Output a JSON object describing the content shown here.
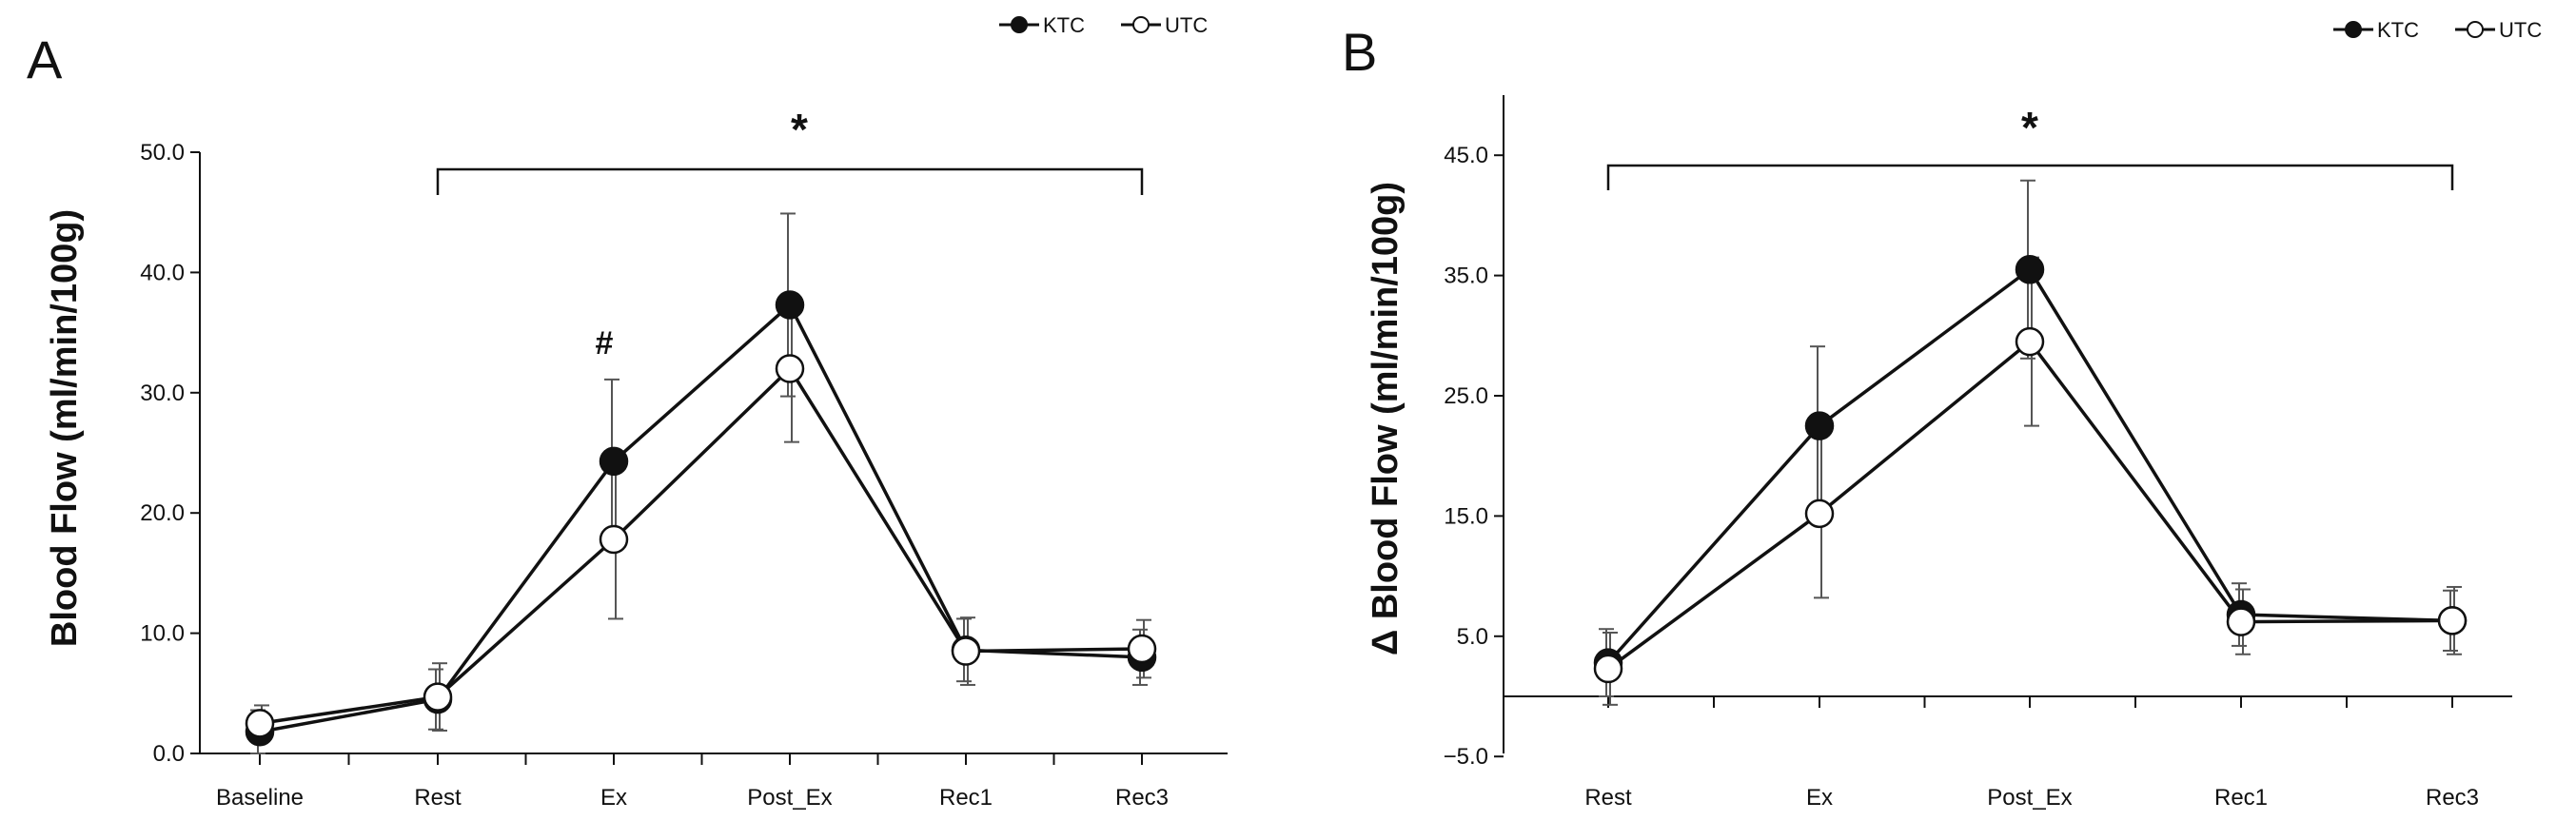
{
  "chart_data": [
    {
      "panel": "A",
      "type": "line",
      "ylabel": "Blood Flow (ml/min/100g)",
      "ylim": [
        0,
        50
      ],
      "yticks": [
        "0.0",
        "10.0",
        "20.0",
        "30.0",
        "40.0",
        "50.0"
      ],
      "categories": [
        "Baseline",
        "Rest",
        "Ex",
        "Post_Ex",
        "Rec1",
        "Rec3"
      ],
      "series": [
        {
          "name": "KTC",
          "marker": "filled",
          "values": [
            1.8,
            4.5,
            24.3,
            37.3,
            8.6,
            8.0
          ],
          "errors": [
            1.8,
            2.5,
            6.8,
            7.6,
            2.6,
            2.3
          ]
        },
        {
          "name": "UTC",
          "marker": "open",
          "values": [
            2.5,
            4.7,
            17.8,
            32.0,
            8.5,
            8.7
          ],
          "errors": [
            1.5,
            2.8,
            6.6,
            6.1,
            2.8,
            2.4
          ]
        }
      ],
      "annotations": {
        "bracket_label": "*",
        "bracket_from": "Rest",
        "bracket_to": "Rec3",
        "marker_label": "#",
        "marker_at": "Ex"
      },
      "legend": {
        "position": "top-right",
        "entries": [
          "KTC",
          "UTC"
        ]
      }
    },
    {
      "panel": "B",
      "type": "line",
      "ylabel": "Δ Blood Flow (ml/min/100g)",
      "ylim": [
        -5,
        50
      ],
      "yticks": [
        "−5.0",
        "5.0",
        "15.0",
        "25.0",
        "35.0",
        "45.0"
      ],
      "ytick_values": [
        -5,
        5,
        15,
        25,
        35,
        45
      ],
      "categories": [
        "Rest",
        "Ex",
        "Post_Ex",
        "Rec1",
        "Rec3"
      ],
      "series": [
        {
          "name": "KTC",
          "marker": "filled",
          "values": [
            2.8,
            22.5,
            35.5,
            6.8,
            6.3
          ],
          "errors": [
            2.8,
            6.6,
            7.4,
            2.6,
            2.5
          ]
        },
        {
          "name": "UTC",
          "marker": "open",
          "values": [
            2.3,
            15.2,
            29.5,
            6.2,
            6.3
          ],
          "errors": [
            3.0,
            7.0,
            7.0,
            2.7,
            2.8
          ]
        }
      ],
      "annotations": {
        "bracket_label": "*",
        "bracket_from": "Rest",
        "bracket_to": "Rec3"
      },
      "legend": {
        "position": "top-right",
        "entries": [
          "KTC",
          "UTC"
        ]
      }
    }
  ],
  "colors": {
    "ink": "#111111",
    "background": "#ffffff"
  }
}
